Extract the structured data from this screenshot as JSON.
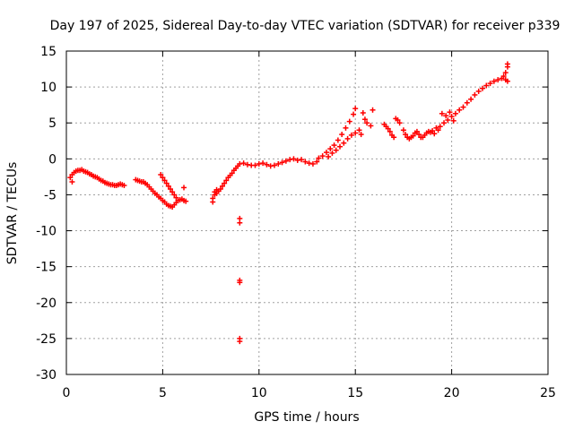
{
  "chart_data": {
    "type": "scatter",
    "title": "Day 197 of 2025, Sidereal Day-to-day VTEC variation (SDTVAR) for receiver p339",
    "xlabel": "GPS time / hours",
    "ylabel": "SDTVAR / TECUs",
    "xlim": [
      0,
      25
    ],
    "ylim": [
      -30,
      15
    ],
    "xticks": [
      0,
      5,
      10,
      15,
      20,
      25
    ],
    "yticks": [
      -30,
      -25,
      -20,
      -15,
      -10,
      -5,
      0,
      5,
      10,
      15
    ],
    "grid": true,
    "marker": "+",
    "color": "#ff0000",
    "series": [
      {
        "name": "SDTVAR",
        "points": [
          [
            0.2,
            -2.6
          ],
          [
            0.3,
            -3.2
          ],
          [
            0.3,
            -2.2
          ],
          [
            0.4,
            -1.9
          ],
          [
            0.5,
            -1.7
          ],
          [
            0.6,
            -1.6
          ],
          [
            0.7,
            -1.6
          ],
          [
            0.8,
            -1.5
          ],
          [
            0.9,
            -1.7
          ],
          [
            1.0,
            -1.8
          ],
          [
            1.1,
            -1.9
          ],
          [
            1.2,
            -2.1
          ],
          [
            1.3,
            -2.2
          ],
          [
            1.4,
            -2.4
          ],
          [
            1.5,
            -2.5
          ],
          [
            1.6,
            -2.6
          ],
          [
            1.7,
            -2.8
          ],
          [
            1.8,
            -3.0
          ],
          [
            1.9,
            -3.1
          ],
          [
            2.0,
            -3.3
          ],
          [
            2.1,
            -3.4
          ],
          [
            2.2,
            -3.5
          ],
          [
            2.3,
            -3.6
          ],
          [
            2.4,
            -3.6
          ],
          [
            2.5,
            -3.7
          ],
          [
            2.6,
            -3.7
          ],
          [
            2.7,
            -3.6
          ],
          [
            2.8,
            -3.5
          ],
          [
            2.9,
            -3.6
          ],
          [
            3.0,
            -3.7
          ],
          [
            3.6,
            -2.9
          ],
          [
            3.7,
            -3.0
          ],
          [
            3.8,
            -3.1
          ],
          [
            3.9,
            -3.2
          ],
          [
            4.0,
            -3.2
          ],
          [
            4.1,
            -3.4
          ],
          [
            4.2,
            -3.6
          ],
          [
            4.3,
            -3.9
          ],
          [
            4.4,
            -4.2
          ],
          [
            4.5,
            -4.5
          ],
          [
            4.6,
            -4.8
          ],
          [
            4.7,
            -5.0
          ],
          [
            4.8,
            -5.3
          ],
          [
            4.9,
            -5.5
          ],
          [
            5.0,
            -5.8
          ],
          [
            5.1,
            -6.0
          ],
          [
            5.2,
            -6.3
          ],
          [
            5.3,
            -6.5
          ],
          [
            5.4,
            -6.6
          ],
          [
            5.5,
            -6.7
          ],
          [
            5.6,
            -6.4
          ],
          [
            5.7,
            -6.1
          ],
          [
            5.8,
            -5.8
          ],
          [
            5.9,
            -5.7
          ],
          [
            6.0,
            -5.6
          ],
          [
            6.1,
            -5.8
          ],
          [
            6.2,
            -5.9
          ],
          [
            6.1,
            -4.0
          ],
          [
            4.9,
            -2.2
          ],
          [
            5.0,
            -2.6
          ],
          [
            5.1,
            -3.0
          ],
          [
            5.2,
            -3.4
          ],
          [
            5.3,
            -3.8
          ],
          [
            5.4,
            -4.2
          ],
          [
            5.5,
            -4.6
          ],
          [
            5.6,
            -5.0
          ],
          [
            5.7,
            -5.4
          ],
          [
            7.6,
            -6.0
          ],
          [
            7.6,
            -5.5
          ],
          [
            7.7,
            -5.0
          ],
          [
            7.7,
            -4.6
          ],
          [
            7.8,
            -4.3
          ],
          [
            7.8,
            -4.8
          ],
          [
            7.9,
            -4.5
          ],
          [
            8.0,
            -4.2
          ],
          [
            8.1,
            -3.8
          ],
          [
            8.2,
            -3.4
          ],
          [
            8.3,
            -3.0
          ],
          [
            8.4,
            -2.6
          ],
          [
            8.5,
            -2.3
          ],
          [
            8.6,
            -2.0
          ],
          [
            8.7,
            -1.6
          ],
          [
            8.8,
            -1.3
          ],
          [
            8.9,
            -1.0
          ],
          [
            9.0,
            -0.7
          ],
          [
            9.0,
            -8.3
          ],
          [
            9.0,
            -8.9
          ],
          [
            9.0,
            -16.9
          ],
          [
            9.0,
            -17.2
          ],
          [
            9.0,
            -25.0
          ],
          [
            9.0,
            -25.4
          ],
          [
            9.2,
            -0.6
          ],
          [
            9.4,
            -0.8
          ],
          [
            9.6,
            -0.9
          ],
          [
            9.8,
            -0.9
          ],
          [
            10.0,
            -0.7
          ],
          [
            10.2,
            -0.6
          ],
          [
            10.4,
            -0.8
          ],
          [
            10.6,
            -1.0
          ],
          [
            10.8,
            -0.9
          ],
          [
            11.0,
            -0.7
          ],
          [
            11.2,
            -0.5
          ],
          [
            11.4,
            -0.3
          ],
          [
            11.6,
            -0.1
          ],
          [
            11.8,
            0.0
          ],
          [
            12.0,
            -0.2
          ],
          [
            12.2,
            -0.1
          ],
          [
            12.4,
            -0.4
          ],
          [
            12.6,
            -0.6
          ],
          [
            12.8,
            -0.7
          ],
          [
            13.0,
            -0.4
          ],
          [
            13.1,
            0.1
          ],
          [
            13.3,
            0.4
          ],
          [
            13.5,
            0.9
          ],
          [
            13.7,
            1.4
          ],
          [
            13.9,
            1.9
          ],
          [
            14.1,
            2.6
          ],
          [
            14.3,
            3.4
          ],
          [
            14.5,
            4.3
          ],
          [
            14.7,
            5.2
          ],
          [
            14.9,
            6.2
          ],
          [
            15.0,
            7.0
          ],
          [
            13.6,
            0.3
          ],
          [
            13.8,
            0.8
          ],
          [
            14.0,
            1.2
          ],
          [
            14.2,
            1.7
          ],
          [
            14.4,
            2.2
          ],
          [
            14.6,
            2.8
          ],
          [
            14.8,
            3.3
          ],
          [
            15.0,
            3.6
          ],
          [
            15.2,
            4.0
          ],
          [
            15.3,
            3.4
          ],
          [
            15.4,
            6.4
          ],
          [
            15.5,
            5.5
          ],
          [
            15.6,
            5.0
          ],
          [
            15.8,
            4.6
          ],
          [
            15.9,
            6.8
          ],
          [
            16.5,
            4.8
          ],
          [
            16.6,
            4.5
          ],
          [
            16.7,
            4.2
          ],
          [
            16.8,
            3.8
          ],
          [
            16.9,
            3.3
          ],
          [
            17.0,
            3.0
          ],
          [
            17.1,
            5.6
          ],
          [
            17.2,
            5.4
          ],
          [
            17.3,
            5.0
          ],
          [
            17.5,
            4.0
          ],
          [
            17.6,
            3.4
          ],
          [
            17.7,
            3.0
          ],
          [
            17.8,
            2.8
          ],
          [
            17.9,
            3.0
          ],
          [
            18.0,
            3.2
          ],
          [
            18.1,
            3.6
          ],
          [
            18.2,
            3.8
          ],
          [
            18.3,
            3.4
          ],
          [
            18.4,
            3.0
          ],
          [
            18.5,
            3.0
          ],
          [
            18.6,
            3.3
          ],
          [
            18.7,
            3.6
          ],
          [
            18.8,
            3.8
          ],
          [
            18.9,
            3.7
          ],
          [
            19.0,
            3.9
          ],
          [
            19.2,
            4.3
          ],
          [
            19.4,
            4.5
          ],
          [
            19.6,
            5.0
          ],
          [
            19.8,
            5.4
          ],
          [
            20.0,
            5.9
          ],
          [
            20.2,
            6.3
          ],
          [
            20.4,
            6.8
          ],
          [
            20.6,
            7.2
          ],
          [
            20.8,
            7.8
          ],
          [
            21.0,
            8.3
          ],
          [
            21.2,
            8.9
          ],
          [
            21.4,
            9.4
          ],
          [
            21.6,
            9.8
          ],
          [
            21.8,
            10.2
          ],
          [
            22.0,
            10.5
          ],
          [
            22.2,
            10.8
          ],
          [
            22.4,
            11.0
          ],
          [
            22.6,
            11.2
          ],
          [
            22.7,
            11.5
          ],
          [
            22.8,
            12.0
          ],
          [
            22.8,
            11.0
          ],
          [
            22.9,
            12.8
          ],
          [
            22.9,
            13.2
          ],
          [
            22.9,
            10.8
          ],
          [
            19.5,
            6.3
          ],
          [
            19.7,
            6.0
          ],
          [
            19.9,
            6.5
          ],
          [
            20.1,
            5.3
          ],
          [
            19.3,
            4.0
          ],
          [
            19.1,
            3.5
          ]
        ]
      }
    ]
  }
}
